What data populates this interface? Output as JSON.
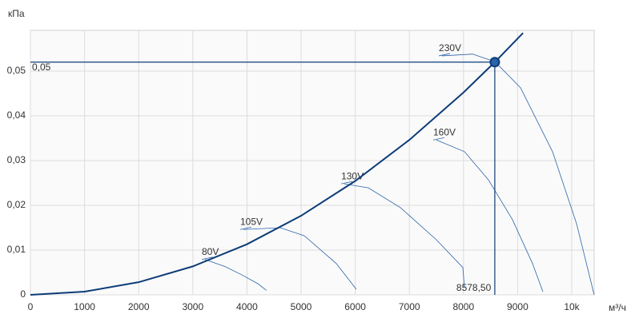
{
  "chart_data": {
    "type": "line",
    "y_label": "кПа",
    "x_label": "м³/ч",
    "xlim": [
      0,
      10414
    ],
    "ylim": [
      0,
      0.0591
    ],
    "xticks": [
      0,
      1000,
      2000,
      3000,
      4000,
      5000,
      6000,
      7000,
      8000,
      9000,
      {
        "value": 10000,
        "label": "10k"
      }
    ],
    "yticks": [
      0,
      {
        "value": 0.01,
        "label": "0,01"
      },
      {
        "value": 0.02,
        "label": "0,02"
      },
      {
        "value": 0.03,
        "label": "0,03"
      },
      {
        "value": 0.04,
        "label": "0,04"
      },
      {
        "value": 0.05,
        "label": "0,05"
      }
    ],
    "grid": true,
    "system_curve": {
      "color": "#0d3c78",
      "x": [
        0,
        1000,
        2000,
        3000,
        4000,
        5000,
        6000,
        7000,
        8000,
        8578.5,
        9100
      ],
      "values": [
        0,
        0.000707,
        0.002827,
        0.00636,
        0.01131,
        0.01767,
        0.02544,
        0.03462,
        0.04522,
        0.052,
        0.05851
      ]
    },
    "series": [
      {
        "name": "80V",
        "color": "#2a64a8",
        "x": [
          3225,
          3600,
          3900,
          4200,
          4360
        ],
        "values": [
          0.0079,
          0.0063,
          0.0045,
          0.0025,
          0.001
        ]
      },
      {
        "name": "105V",
        "color": "#2a64a8",
        "x": [
          3935,
          4615,
          5060,
          5650,
          6020
        ],
        "values": [
          0.0146,
          0.015,
          0.0132,
          0.007,
          0.00125
        ]
      },
      {
        "name": "130V",
        "color": "#2a64a8",
        "x": [
          5800,
          6243,
          6834,
          7500,
          7988,
          8018
        ],
        "values": [
          0.0248,
          0.0239,
          0.0195,
          0.0123,
          0.0061,
          0.0016
        ]
      },
      {
        "name": "160V",
        "color": "#2a64a8",
        "x": [
          7500,
          8018,
          8461,
          8905,
          9275,
          9467
        ],
        "values": [
          0.0346,
          0.032,
          0.0257,
          0.0168,
          0.007,
          0.0007
        ]
      },
      {
        "name": "230V",
        "color": "#2a64a8",
        "x": [
          7604,
          8166,
          8580,
          9053,
          9645,
          10089,
          10414
        ],
        "values": [
          0.0534,
          0.0538,
          0.0521,
          0.0463,
          0.032,
          0.0159,
          0
        ]
      }
    ],
    "operating_point": {
      "x": 8578.5,
      "y": 0.052,
      "x_label": "8578,50",
      "y_label": "0,05",
      "color": "#0d3c78"
    }
  }
}
